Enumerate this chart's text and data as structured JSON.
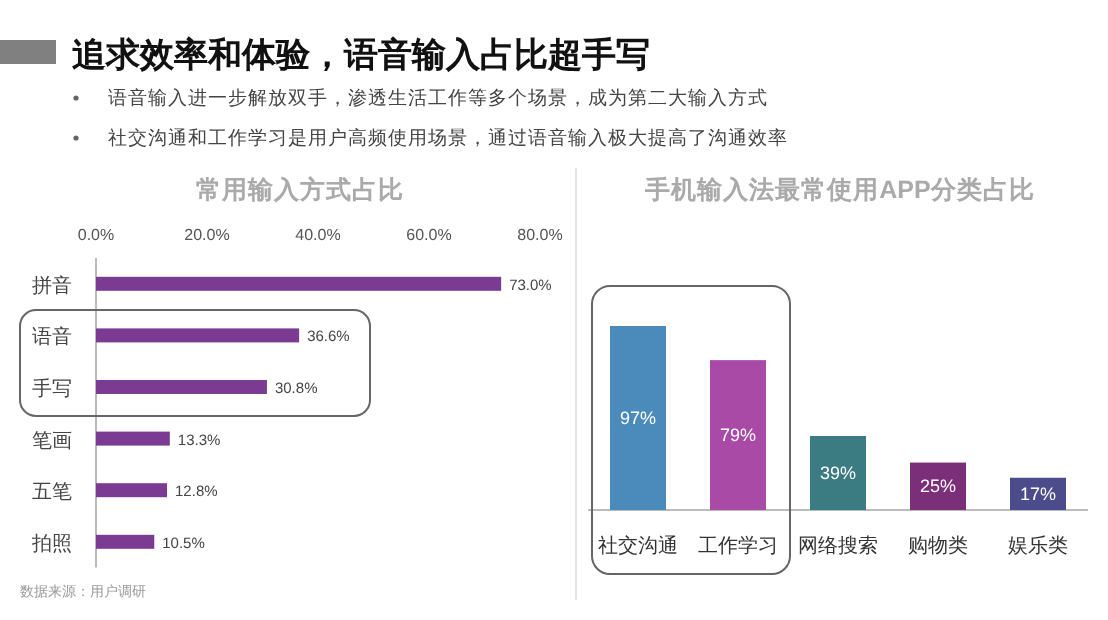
{
  "chart_data": [
    {
      "type": "other",
      "title": "追求效率和体验，语音输入占比超手写",
      "annotations": [
        "语音输入进一步解放双手，渗透生活工作等多个场景，成为第二大输入方式",
        "社交沟通和工作学习是用户高频使用场景，通过语音输入极大提高了沟通效率"
      ]
    },
    {
      "type": "bar",
      "orientation": "horizontal",
      "title": "常用输入方式占比",
      "categories": [
        "拼音",
        "语音",
        "手写",
        "笔画",
        "五笔",
        "拍照"
      ],
      "values": [
        73.0,
        36.6,
        30.8,
        13.3,
        12.8,
        10.5
      ],
      "color": "#7b3b93",
      "value_labels": [
        "73.0%",
        "36.6%",
        "30.8%",
        "13.3%",
        "12.8%",
        "10.5%"
      ],
      "xlim": [
        0,
        80
      ],
      "xticks": [
        {
          "value": 0,
          "label": "0.0%"
        },
        {
          "value": 20,
          "label": "20.0%"
        },
        {
          "value": 40,
          "label": "40.0%"
        },
        {
          "value": 60,
          "label": "60.0%"
        },
        {
          "value": 80,
          "label": "80.0%"
        }
      ],
      "grid": false,
      "annotations": [
        "数据来源：用户调研"
      ]
    },
    {
      "type": "bar",
      "title": "手机输入法最常使用APP分类占比",
      "categories": [
        "社交沟通",
        "工作学习",
        "网络搜索",
        "购物类",
        "娱乐类"
      ],
      "values": [
        97,
        79,
        39,
        25,
        17
      ],
      "colors": [
        "#4b8bbb",
        "#a94aa6",
        "#3b7c82",
        "#7a2f78",
        "#4c4b8c"
      ],
      "value_labels": [
        "97%",
        "79%",
        "39%",
        "25%",
        "17%"
      ],
      "tick_labels": "x"
    }
  ]
}
